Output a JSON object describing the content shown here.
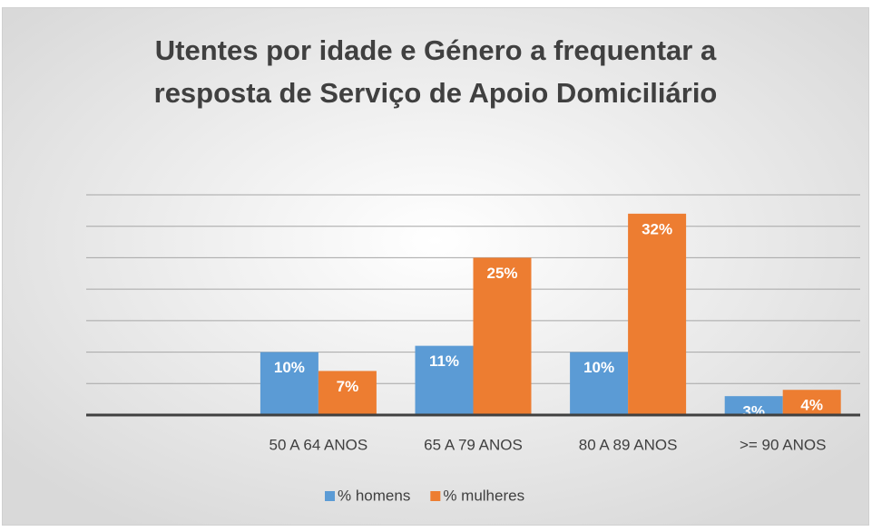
{
  "chart_data": {
    "type": "bar",
    "title": [
      "Utentes por idade e Género a frequentar a",
      "resposta de Serviço de Apoio Domiciliário"
    ],
    "categories": [
      null,
      "50 A 64 ANOS",
      "65 A 79 ANOS",
      "80 A 89 ANOS",
      ">= 90 ANOS"
    ],
    "series": [
      {
        "name": "% homens",
        "color": "#5b9bd5",
        "values": [
          null,
          10,
          11,
          10,
          3
        ],
        "value_labels": [
          null,
          "10%",
          "11%",
          "10%",
          "3%"
        ]
      },
      {
        "name": "% mulheres",
        "color": "#ed7d31",
        "values": [
          null,
          7,
          25,
          32,
          4
        ],
        "value_labels": [
          null,
          "7%",
          "25%",
          "32%",
          "4%"
        ]
      }
    ],
    "ylim": [
      0,
      35
    ],
    "yticks": [
      0,
      5,
      10,
      15,
      20,
      25,
      30,
      35
    ],
    "grid": true,
    "legend": "bottom"
  }
}
